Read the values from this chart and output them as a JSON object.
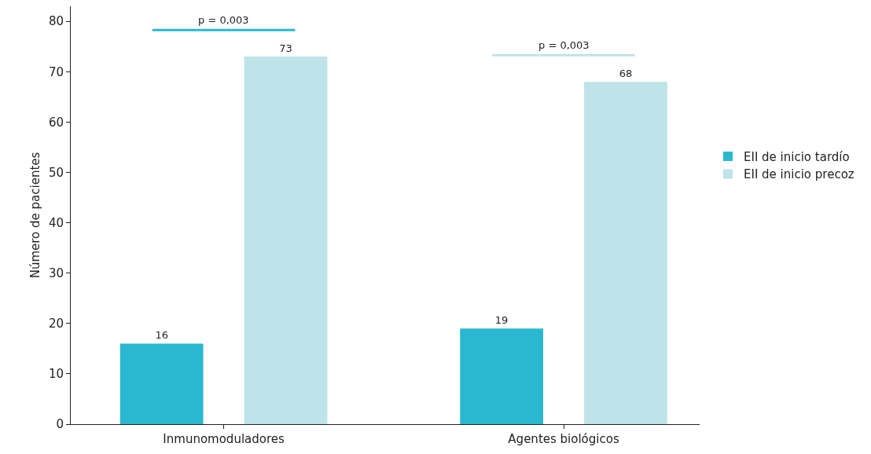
{
  "chart_data": {
    "type": "bar",
    "ylabel": "Número de pacientes",
    "categories": [
      "Inmunomoduladores",
      "Agentes biológicos"
    ],
    "series": [
      {
        "name": "EII de inicio tardío",
        "color": "#29b8d0",
        "values": [
          16,
          19
        ]
      },
      {
        "name": "EII de inicio precoz",
        "color": "#bee3e8",
        "values": [
          73,
          68
        ]
      }
    ],
    "ylim": [
      0,
      83
    ],
    "yticks": [
      0,
      10,
      20,
      30,
      40,
      50,
      60,
      70,
      80
    ],
    "grid": false,
    "legend": "right",
    "data_labels": true,
    "annotations": [
      "p = 0,003",
      "p = 0,003"
    ]
  }
}
